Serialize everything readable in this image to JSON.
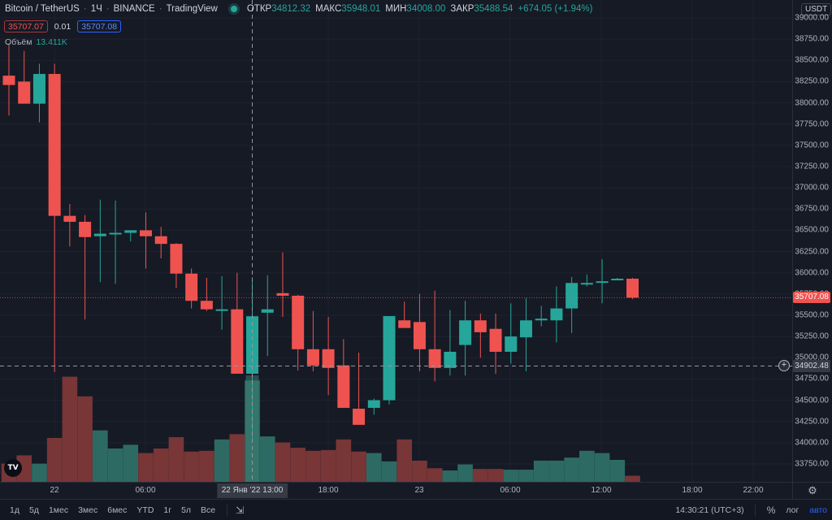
{
  "header": {
    "symbol": "Bitcoin / TetherUS",
    "interval": "1Ч",
    "exchange": "BINANCE",
    "source": "TradingView",
    "ohlc": {
      "open_label": "ОТКР",
      "open": "34812.32",
      "high_label": "МАКС",
      "high": "35948.01",
      "low_label": "МИН",
      "low": "34008.00",
      "close_label": "ЗАКР",
      "close": "35488.54",
      "change": "+674.05 (+1.94%)"
    },
    "sell_price": "35707.07",
    "spread": "0.01",
    "buy_price": "35707.08",
    "volume_label": "Объём",
    "volume_value": "13.411K"
  },
  "price_axis": {
    "currency": "USDT",
    "last_price": "35707.08",
    "crosshair_price": "34902.48",
    "ticks": [
      "39000.00",
      "38750.00",
      "38500.00",
      "38250.00",
      "38000.00",
      "37750.00",
      "37500.00",
      "37250.00",
      "37000.00",
      "36750.00",
      "36500.00",
      "36250.00",
      "36000.00",
      "35750.00",
      "35500.00",
      "35250.00",
      "35000.00",
      "34750.00",
      "34500.00",
      "34250.00",
      "34000.00",
      "33750.00"
    ]
  },
  "time_axis": {
    "ticks": [
      {
        "label": "22",
        "x": 67
      },
      {
        "label": "06:00",
        "x": 179
      },
      {
        "label": "18:00",
        "x": 404
      },
      {
        "label": "23",
        "x": 516
      },
      {
        "label": "06:00",
        "x": 628
      },
      {
        "label": "12:00",
        "x": 740
      },
      {
        "label": "18:00",
        "x": 852
      },
      {
        "label": "22:00",
        "x": 927
      }
    ],
    "crosshair_label": "22 Янв '22   13:00"
  },
  "bottom_bar": {
    "ranges": [
      "1д",
      "5д",
      "1мес",
      "3мес",
      "6мес",
      "YTD",
      "1г",
      "5л",
      "Все"
    ],
    "clock": "14:30:21 (UTC+3)",
    "percent": "%",
    "log": "лог",
    "auto": "авто"
  },
  "colors": {
    "up": "#26a69a",
    "down": "#ef5350",
    "vol_up": "#2f6f67",
    "vol_down": "#7d3838",
    "background": "#161a25",
    "grid": "#1f2330"
  },
  "chart_data": {
    "type": "candlestick",
    "title": "Bitcoin / TetherUS · 1Ч · BINANCE",
    "xlabel": "",
    "ylabel": "USDT",
    "ylim": [
      33650,
      39150
    ],
    "grid": true,
    "x": [
      "21 21:00",
      "21 22:00",
      "21 23:00",
      "22 00:00",
      "22 01:00",
      "22 02:00",
      "22 03:00",
      "22 04:00",
      "22 05:00",
      "22 06:00",
      "22 07:00",
      "22 08:00",
      "22 09:00",
      "22 10:00",
      "22 11:00",
      "22 12:00",
      "22 13:00",
      "22 14:00",
      "22 15:00",
      "22 16:00",
      "22 17:00",
      "22 18:00",
      "22 19:00",
      "22 20:00",
      "22 21:00",
      "22 22:00",
      "22 23:00",
      "23 00:00",
      "23 01:00",
      "23 02:00",
      "23 03:00",
      "23 04:00",
      "23 05:00",
      "23 06:00",
      "23 07:00",
      "23 08:00",
      "23 09:00",
      "23 10:00",
      "23 11:00",
      "23 12:00",
      "23 13:00",
      "23 14:00"
    ],
    "series": [
      {
        "name": "open",
        "values": [
          38320,
          38250,
          37990,
          38340,
          36670,
          36600,
          36430,
          36460,
          36470,
          36500,
          36430,
          36340,
          35990,
          35670,
          35570,
          35570,
          34812,
          35530,
          35760,
          35730,
          35100,
          35100,
          34910,
          34400,
          34410,
          34500,
          35440,
          35420,
          35100,
          34880,
          35150,
          35440,
          35340,
          35070,
          35240,
          35440,
          35440,
          35580,
          35880,
          35890,
          35920,
          35930
        ]
      },
      {
        "name": "high",
        "values": [
          38700,
          38610,
          38460,
          38460,
          36810,
          36680,
          36860,
          36850,
          36500,
          36710,
          36540,
          36350,
          36050,
          35940,
          35960,
          36000,
          35948,
          35970,
          36240,
          35740,
          35550,
          35480,
          35220,
          35060,
          34520,
          35290,
          35660,
          35750,
          35790,
          35560,
          35670,
          35520,
          35520,
          35640,
          35700,
          35610,
          35840,
          35950,
          35980,
          36160,
          35940,
          35940
        ]
      },
      {
        "name": "low",
        "values": [
          37850,
          38000,
          37770,
          34830,
          36310,
          35450,
          35890,
          35870,
          36370,
          36050,
          36170,
          35820,
          35580,
          35550,
          35330,
          35380,
          34008,
          35020,
          35480,
          34850,
          34840,
          34560,
          34470,
          34230,
          34330,
          34450,
          35360,
          34840,
          34720,
          34790,
          34790,
          35000,
          34810,
          34930,
          34840,
          35370,
          35180,
          35290,
          35840,
          35640,
          35930,
          35690
        ]
      },
      {
        "name": "close",
        "values": [
          38210,
          37990,
          38340,
          36670,
          36600,
          36420,
          36460,
          36470,
          36500,
          36430,
          36340,
          35990,
          35670,
          35570,
          35570,
          34812,
          35488,
          35570,
          35730,
          35100,
          34910,
          34880,
          34410,
          34210,
          34500,
          35490,
          35350,
          35100,
          34880,
          35070,
          35440,
          35300,
          35070,
          35250,
          35440,
          35460,
          35580,
          35880,
          35880,
          35900,
          35930,
          35707
        ]
      }
    ],
    "volume": {
      "name": "Объём",
      "values": [
        2.4,
        3.5,
        2.4,
        5.8,
        13.9,
        11.3,
        6.8,
        4.4,
        4.9,
        3.8,
        4.4,
        5.9,
        4.0,
        4.1,
        5.6,
        6.3,
        13.4,
        6.0,
        5.2,
        4.5,
        4.1,
        4.2,
        5.6,
        4.0,
        3.8,
        2.7,
        5.6,
        2.8,
        1.8,
        1.5,
        2.3,
        1.7,
        1.7,
        1.6,
        1.6,
        2.8,
        2.8,
        3.2,
        4.1,
        3.8,
        2.9,
        0.8
      ]
    }
  }
}
